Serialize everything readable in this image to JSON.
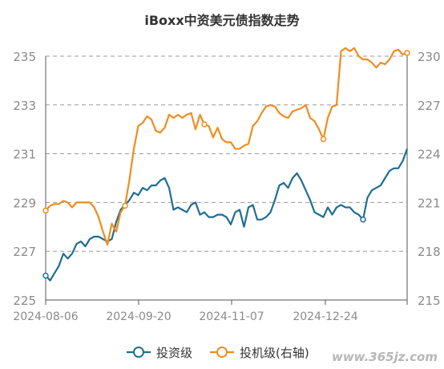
{
  "chart_data": {
    "type": "line",
    "title": "iBoxx中资美元债指数走势",
    "x_tick_labels": [
      "2024-08-06",
      "2024-09-20",
      "2024-11-07",
      "2024-12-24"
    ],
    "y_left": {
      "ticks": [
        225,
        227,
        229,
        231,
        233,
        235
      ],
      "range": [
        225,
        235
      ]
    },
    "y_right": {
      "ticks": [
        215,
        218,
        221,
        224,
        227,
        230
      ],
      "range": [
        215,
        230
      ]
    },
    "grid": "horizontal dashed",
    "legend_position": "bottom",
    "series": [
      {
        "name": "投资级",
        "axis": "left",
        "color": "#1f6e93",
        "values": [
          226.0,
          225.8,
          226.1,
          226.4,
          226.9,
          226.7,
          226.9,
          227.3,
          227.4,
          227.2,
          227.5,
          227.6,
          227.6,
          227.5,
          227.4,
          227.5,
          228.2,
          228.7,
          228.9,
          229.1,
          229.4,
          229.3,
          229.6,
          229.5,
          229.7,
          229.7,
          229.9,
          230.0,
          229.6,
          228.7,
          228.8,
          228.7,
          228.6,
          228.9,
          229.0,
          228.5,
          228.6,
          228.4,
          228.4,
          228.5,
          228.5,
          228.4,
          228.1,
          228.6,
          228.7,
          228.0,
          228.8,
          228.9,
          228.3,
          228.3,
          228.4,
          228.6,
          229.1,
          229.7,
          229.8,
          229.6,
          230.0,
          230.2,
          229.9,
          229.5,
          229.1,
          228.6,
          228.5,
          228.4,
          228.8,
          228.5,
          228.8,
          228.9,
          228.8,
          228.8,
          228.6,
          228.5,
          228.3,
          229.2,
          229.5,
          229.6,
          229.7,
          230.0,
          230.3,
          230.4,
          230.4,
          230.7,
          231.2
        ]
      },
      {
        "name": "投机级(右轴)",
        "axis": "right",
        "color": "#f08c1f",
        "values": [
          220.5,
          220.8,
          220.9,
          220.9,
          221.1,
          221.0,
          220.7,
          221.0,
          221.0,
          221.0,
          221.0,
          220.7,
          220.1,
          219.2,
          218.4,
          219.7,
          219.2,
          220.4,
          220.8,
          222.4,
          224.3,
          225.7,
          225.9,
          226.3,
          226.1,
          225.4,
          225.3,
          225.6,
          226.4,
          226.2,
          226.4,
          226.2,
          226.4,
          226.5,
          225.5,
          226.4,
          225.8,
          225.7,
          225.0,
          225.6,
          224.9,
          224.7,
          224.7,
          224.3,
          224.3,
          224.5,
          224.6,
          225.7,
          226.0,
          226.5,
          226.9,
          227.0,
          226.9,
          226.5,
          226.3,
          226.2,
          226.6,
          226.7,
          226.8,
          227.0,
          226.2,
          226.0,
          225.5,
          224.9,
          226.2,
          226.9,
          227.0,
          230.3,
          230.5,
          230.3,
          230.5,
          230.0,
          229.8,
          229.8,
          229.6,
          229.3,
          229.6,
          229.5,
          229.8,
          230.3,
          230.4,
          230.1,
          230.2
        ]
      }
    ]
  },
  "legend": {
    "item1": "投资级",
    "item2": "投机级(右轴)"
  },
  "watermark": "www.365jz.com"
}
